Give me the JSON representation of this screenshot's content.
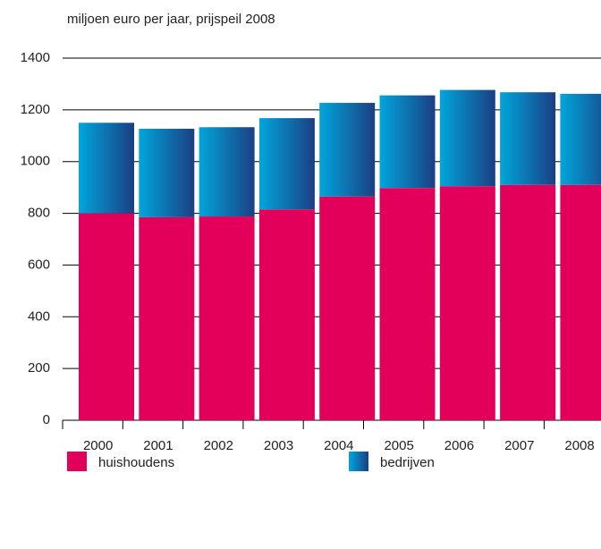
{
  "chart_data": {
    "type": "stacked_bar",
    "title": "miljoen euro per jaar, prijspeil 2008",
    "categories": [
      "2000",
      "2001",
      "2002",
      "2003",
      "2004",
      "2005",
      "2006",
      "2007",
      "2008"
    ],
    "series": [
      {
        "name": "huishoudens",
        "color": "#e2005a",
        "values": [
          800,
          785,
          788,
          815,
          865,
          898,
          905,
          910,
          910
        ]
      },
      {
        "name": "bedrijven",
        "color": "#1b3f83",
        "values": [
          350,
          342,
          345,
          353,
          362,
          358,
          372,
          358,
          352
        ]
      }
    ],
    "ylim": [
      0,
      1400
    ],
    "yticks": [
      0,
      200,
      400,
      600,
      800,
      1000,
      1200,
      1400
    ],
    "grid": true
  }
}
